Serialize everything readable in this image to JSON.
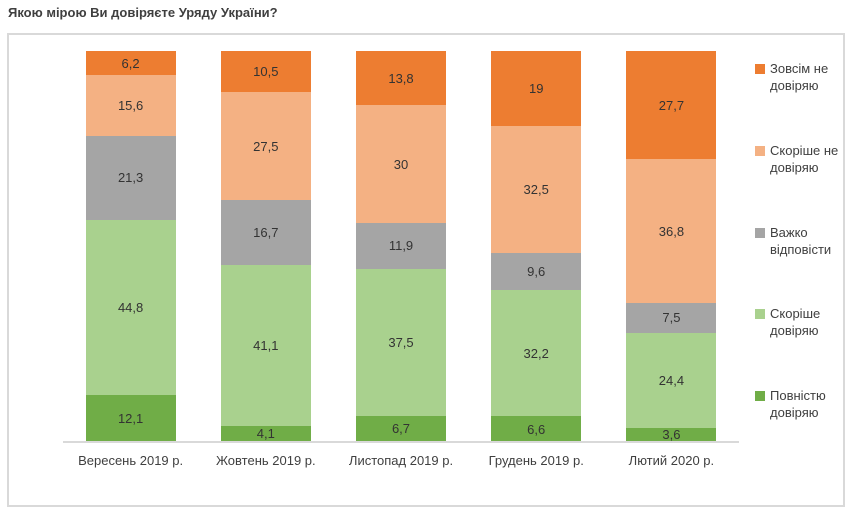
{
  "title": "Якою мірою Ви довіряєте Уряду України?",
  "colors": {
    "strong_distrust": "#ED7D31",
    "rather_distrust": "#F4B183",
    "hard_to_answer": "#A5A5A5",
    "rather_trust": "#A9D18E",
    "full_trust": "#70AD47",
    "border": "#D9D9D9",
    "text": "#404040"
  },
  "chart_data": {
    "type": "bar",
    "stacked": true,
    "unit": "percent",
    "title": "Якою мірою Ви довіряєте Уряду України?",
    "xlabel": "",
    "ylabel": "",
    "ylim": [
      0,
      100
    ],
    "grid": false,
    "legend_position": "right",
    "categories": [
      "Вересень 2019 р.",
      "Жовтень 2019 р.",
      "Листопад 2019 р.",
      "Грудень 2019 р.",
      "Лютий 2020 р."
    ],
    "series": [
      {
        "name": "Зовсім не довіряю",
        "color": "#ED7D31",
        "values": [
          6.2,
          10.5,
          13.8,
          19,
          27.7
        ],
        "labels": [
          "6,2",
          "10,5",
          "13,8",
          "19",
          "27,7"
        ]
      },
      {
        "name": "Скоріше не довіряю",
        "color": "#F4B183",
        "values": [
          15.6,
          27.5,
          30,
          32.5,
          36.8
        ],
        "labels": [
          "15,6",
          "27,5",
          "30",
          "32,5",
          "36,8"
        ]
      },
      {
        "name": "Важко відповісти",
        "color": "#A5A5A5",
        "values": [
          21.3,
          16.7,
          11.9,
          9.6,
          7.5
        ],
        "labels": [
          "21,3",
          "16,7",
          "11,9",
          "9,6",
          "7,5"
        ]
      },
      {
        "name": "Скоріше довіряю",
        "color": "#A9D18E",
        "values": [
          44.8,
          41.1,
          37.5,
          32.2,
          24.4
        ],
        "labels": [
          "44,8",
          "41,1",
          "37,5",
          "32,2",
          "24,4"
        ]
      },
      {
        "name": "Повністю довіряю",
        "color": "#70AD47",
        "values": [
          12.1,
          4.1,
          6.7,
          6.6,
          3.6
        ],
        "labels": [
          "12,1",
          "4,1",
          "6,7",
          "6,6",
          "3,6"
        ]
      }
    ]
  }
}
